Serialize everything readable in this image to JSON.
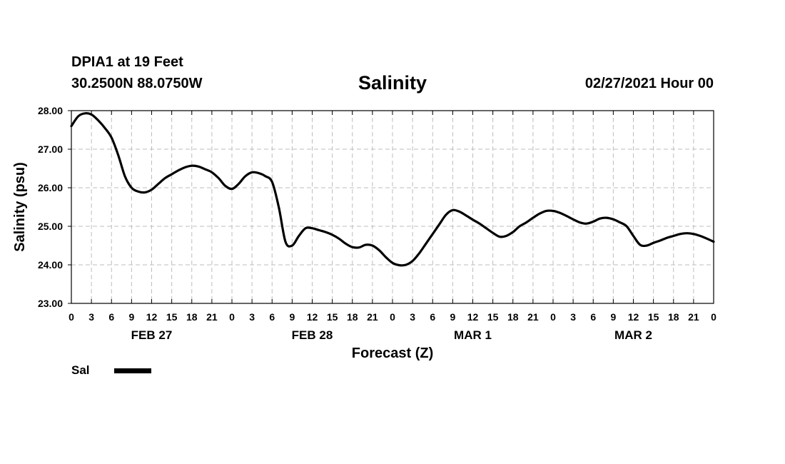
{
  "header": {
    "station": "DPIA1 at 19 Feet",
    "coords": "30.2500N 88.0750W",
    "datetime": "02/27/2021 Hour 00"
  },
  "chart_data": {
    "type": "line",
    "title": "Salinity",
    "xlabel": "Forecast (Z)",
    "ylabel": "Salinity (psu)",
    "xlim": [
      0,
      96
    ],
    "ylim": [
      23.0,
      28.0
    ],
    "y_ticks": [
      "23.00",
      "24.00",
      "25.00",
      "26.00",
      "27.00",
      "28.00"
    ],
    "x_tick_labels": [
      "0",
      "3",
      "6",
      "9",
      "12",
      "15",
      "18",
      "21",
      "0",
      "3",
      "6",
      "9",
      "12",
      "15",
      "18",
      "21",
      "0",
      "3",
      "6",
      "9",
      "12",
      "15",
      "18",
      "21",
      "0",
      "3",
      "6",
      "9",
      "12",
      "15",
      "18",
      "21",
      "0"
    ],
    "date_labels": [
      {
        "text": "FEB 27",
        "hour": 12
      },
      {
        "text": "FEB 28",
        "hour": 36
      },
      {
        "text": "MAR 1",
        "hour": 60
      },
      {
        "text": "MAR 2",
        "hour": 84
      }
    ],
    "grid": true,
    "legend": "bottom-left",
    "series": [
      {
        "name": "Sal",
        "color": "#000000",
        "x": [
          0,
          1,
          2,
          3,
          4,
          5,
          6,
          7,
          8,
          9,
          10,
          11,
          12,
          13,
          14,
          15,
          16,
          17,
          18,
          19,
          20,
          21,
          22,
          23,
          24,
          25,
          26,
          27,
          28,
          29,
          30,
          31,
          32,
          33,
          34,
          35,
          36,
          37,
          38,
          39,
          40,
          41,
          42,
          43,
          44,
          45,
          46,
          47,
          48,
          49,
          50,
          51,
          52,
          53,
          54,
          55,
          56,
          57,
          58,
          59,
          60,
          61,
          62,
          63,
          64,
          65,
          66,
          67,
          68,
          69,
          70,
          71,
          72,
          73,
          74,
          75,
          76,
          77,
          78,
          79,
          80,
          81,
          82,
          83,
          84,
          85,
          86,
          87,
          88,
          89,
          90,
          91,
          92,
          93,
          94,
          95,
          96
        ],
        "values": [
          27.6,
          27.85,
          27.93,
          27.9,
          27.75,
          27.55,
          27.3,
          26.85,
          26.3,
          26.0,
          25.9,
          25.88,
          25.95,
          26.1,
          26.25,
          26.35,
          26.45,
          26.53,
          26.57,
          26.55,
          26.48,
          26.4,
          26.25,
          26.05,
          25.97,
          26.1,
          26.3,
          26.4,
          26.38,
          26.3,
          26.15,
          25.5,
          24.6,
          24.5,
          24.75,
          24.95,
          24.95,
          24.9,
          24.85,
          24.78,
          24.68,
          24.55,
          24.46,
          24.45,
          24.52,
          24.5,
          24.38,
          24.2,
          24.05,
          23.99,
          24.0,
          24.1,
          24.3,
          24.55,
          24.8,
          25.05,
          25.3,
          25.42,
          25.38,
          25.28,
          25.17,
          25.07,
          24.95,
          24.83,
          24.73,
          24.75,
          24.85,
          25.0,
          25.1,
          25.22,
          25.33,
          25.4,
          25.4,
          25.35,
          25.27,
          25.18,
          25.1,
          25.07,
          25.12,
          25.2,
          25.22,
          25.18,
          25.1,
          25.0,
          24.75,
          24.52,
          24.5,
          24.57,
          24.63,
          24.7,
          24.75,
          24.8,
          24.82,
          24.8,
          24.75,
          24.68,
          24.6
        ]
      }
    ]
  }
}
